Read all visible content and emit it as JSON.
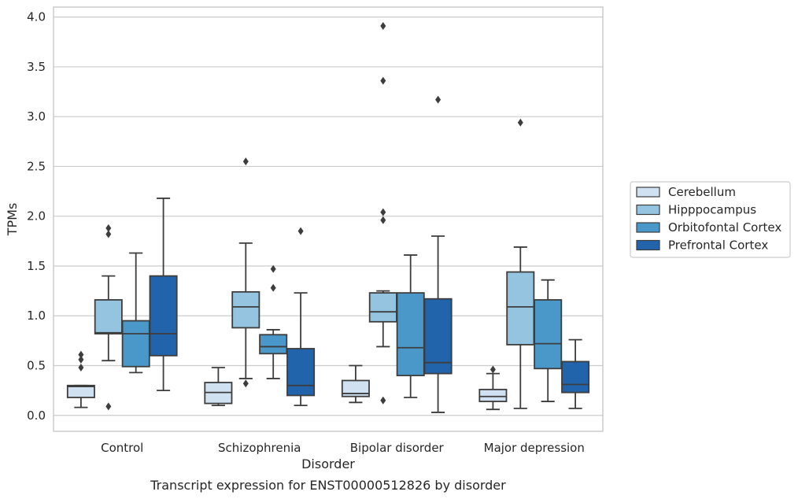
{
  "chart_data": {
    "type": "box",
    "caption": "Transcript expression for ENST00000512826 by disorder",
    "xlabel": "Disorder",
    "ylabel": "TPMs",
    "ylim": [
      -0.16,
      4.1
    ],
    "yticks": [
      "0.0",
      "0.5",
      "1.0",
      "1.5",
      "2.0",
      "2.5",
      "3.0",
      "3.5",
      "4.0"
    ],
    "categories": [
      "Control",
      "Schizophrenia",
      "Bipolar disorder",
      "Major depression"
    ],
    "grid": "horizontal",
    "legend_position": "right",
    "series": [
      {
        "name": "Cerebellum",
        "color": "#d0e1f2",
        "boxes": [
          {
            "whisker_low": 0.08,
            "q1": 0.18,
            "median": 0.29,
            "q3": 0.3,
            "whisker_high": 0.3,
            "outliers": [
              0.48,
              0.56,
              0.61
            ]
          },
          {
            "whisker_low": 0.1,
            "q1": 0.12,
            "median": 0.23,
            "q3": 0.33,
            "whisker_high": 0.48,
            "outliers": []
          },
          {
            "whisker_low": 0.13,
            "q1": 0.19,
            "median": 0.22,
            "q3": 0.35,
            "whisker_high": 0.5,
            "outliers": []
          },
          {
            "whisker_low": 0.06,
            "q1": 0.14,
            "median": 0.19,
            "q3": 0.26,
            "whisker_high": 0.42,
            "outliers": [
              0.46
            ]
          }
        ]
      },
      {
        "name": "Hipppocampus",
        "color": "#94c4df",
        "boxes": [
          {
            "whisker_low": 0.55,
            "q1": 0.82,
            "median": 0.83,
            "q3": 1.16,
            "whisker_high": 1.4,
            "outliers": [
              0.09,
              1.82,
              1.88
            ]
          },
          {
            "whisker_low": 0.37,
            "q1": 0.88,
            "median": 1.09,
            "q3": 1.24,
            "whisker_high": 1.73,
            "outliers": [
              0.32,
              2.55
            ]
          },
          {
            "whisker_low": 0.69,
            "q1": 0.94,
            "median": 1.04,
            "q3": 1.23,
            "whisker_high": 1.25,
            "outliers": [
              0.15,
              1.96,
              2.04,
              3.36,
              3.91
            ]
          },
          {
            "whisker_low": 0.07,
            "q1": 0.71,
            "median": 1.09,
            "q3": 1.44,
            "whisker_high": 1.69,
            "outliers": [
              2.94
            ]
          }
        ]
      },
      {
        "name": "Orbitofontal Cortex",
        "color": "#4a98c9",
        "boxes": [
          {
            "whisker_low": 0.43,
            "q1": 0.49,
            "median": 0.82,
            "q3": 0.95,
            "whisker_high": 1.63,
            "outliers": []
          },
          {
            "whisker_low": 0.37,
            "q1": 0.62,
            "median": 0.69,
            "q3": 0.81,
            "whisker_high": 0.86,
            "outliers": [
              1.28,
              1.47
            ]
          },
          {
            "whisker_low": 0.18,
            "q1": 0.4,
            "median": 0.68,
            "q3": 1.23,
            "whisker_high": 1.61,
            "outliers": []
          },
          {
            "whisker_low": 0.14,
            "q1": 0.47,
            "median": 0.72,
            "q3": 1.16,
            "whisker_high": 1.36,
            "outliers": []
          }
        ]
      },
      {
        "name": "Prefrontal Cortex",
        "color": "#2164ab",
        "boxes": [
          {
            "whisker_low": 0.25,
            "q1": 0.6,
            "median": 0.82,
            "q3": 1.4,
            "whisker_high": 2.18,
            "outliers": []
          },
          {
            "whisker_low": 0.1,
            "q1": 0.2,
            "median": 0.3,
            "q3": 0.67,
            "whisker_high": 1.23,
            "outliers": [
              1.85
            ]
          },
          {
            "whisker_low": 0.03,
            "q1": 0.42,
            "median": 0.53,
            "q3": 1.17,
            "whisker_high": 1.8,
            "outliers": [
              3.17
            ]
          },
          {
            "whisker_low": 0.07,
            "q1": 0.23,
            "median": 0.31,
            "q3": 0.54,
            "whisker_high": 0.76,
            "outliers": []
          }
        ]
      }
    ]
  }
}
